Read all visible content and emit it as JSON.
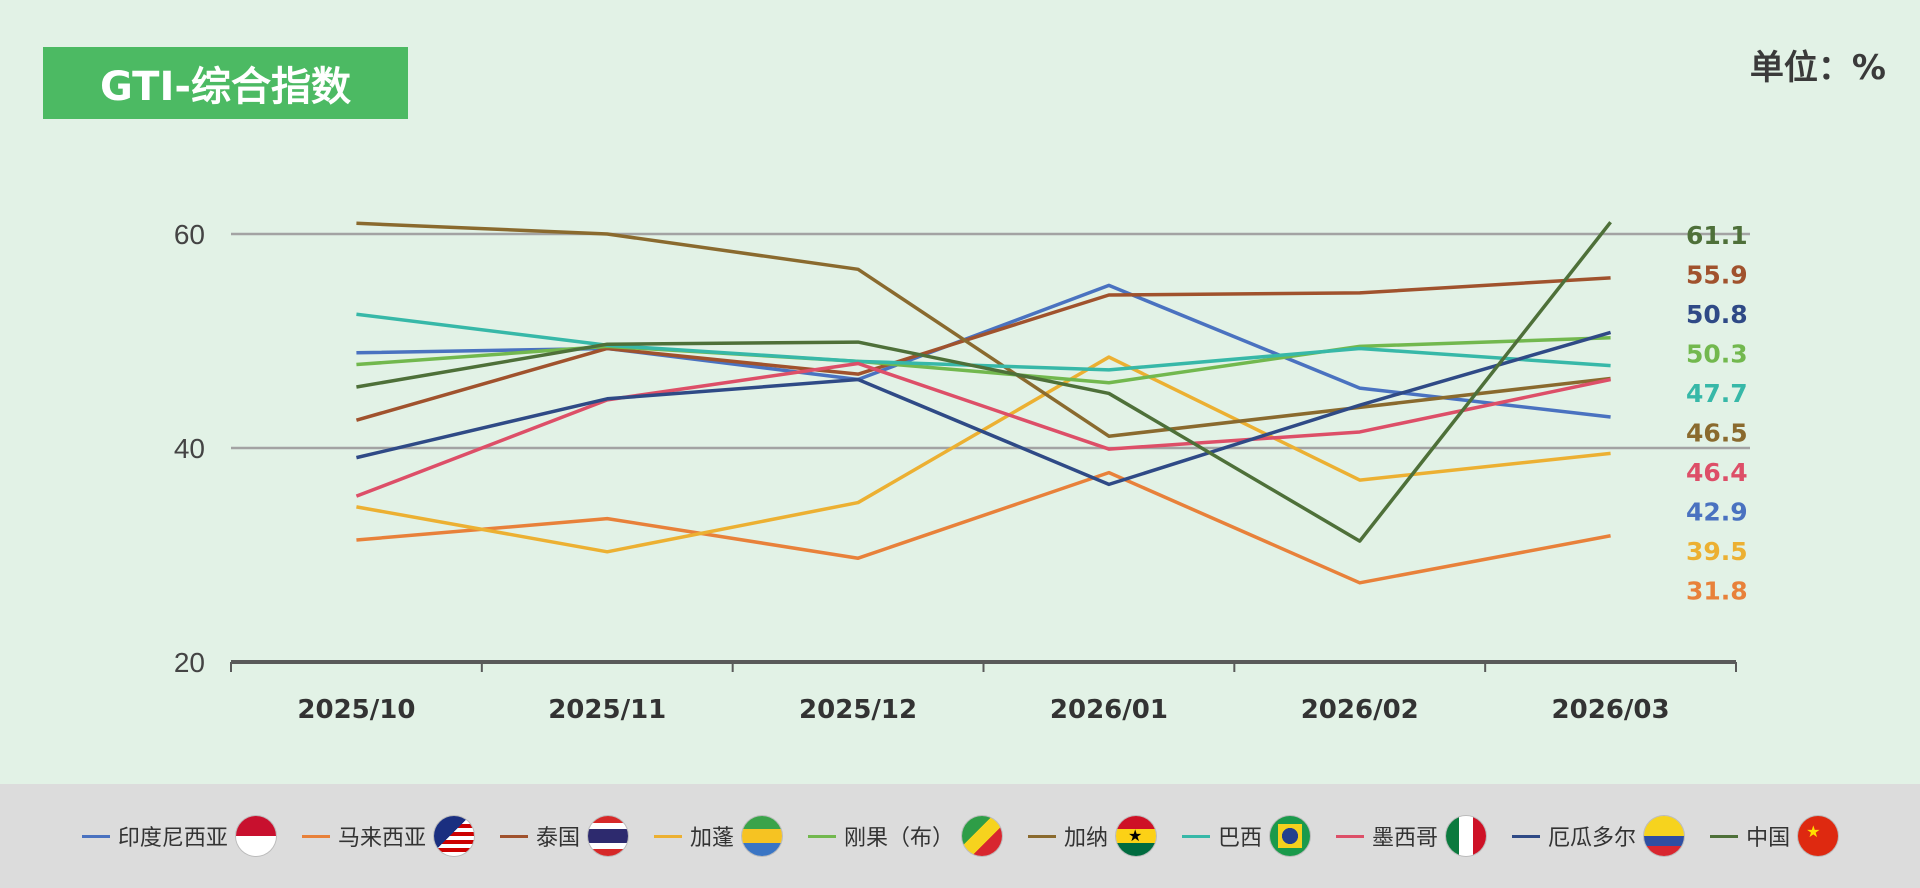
{
  "header": {
    "title": "GTI-综合指数",
    "unit": "单位：%"
  },
  "chart_data": {
    "type": "line",
    "title": "GTI-综合指数",
    "unit": "单位：%",
    "categories": [
      "2025/10",
      "2025/11",
      "2025/12",
      "2026/01",
      "2026/02",
      "2026/03"
    ],
    "ylim": [
      20,
      60
    ],
    "yticks": [
      "20",
      "40",
      "60"
    ],
    "grid": true,
    "legend_position": "bottom",
    "series": [
      {
        "name": "印度尼西亚",
        "color": "#4a72c0",
        "flag": "indonesia-flag",
        "values": [
          48.9,
          49.3,
          46.4,
          55.2,
          45.6,
          42.9
        ],
        "end_label": "42.9"
      },
      {
        "name": "马来西亚",
        "color": "#e8813a",
        "flag": "malaysia-flag",
        "values": [
          31.4,
          33.4,
          29.7,
          37.7,
          27.4,
          31.8
        ],
        "end_label": "31.8"
      },
      {
        "name": "泰国",
        "color": "#a0522d",
        "flag": "thailand-flag",
        "values": [
          42.6,
          49.3,
          46.9,
          54.3,
          54.5,
          55.9
        ],
        "end_label": "55.9"
      },
      {
        "name": "加蓬",
        "color": "#ecb032",
        "flag": "gabon-flag",
        "values": [
          34.5,
          30.3,
          34.9,
          48.5,
          37.0,
          39.5
        ],
        "end_label": "39.5"
      },
      {
        "name": "刚果（布）",
        "color": "#72b84e",
        "flag": "congo-flag",
        "values": [
          47.8,
          49.5,
          48.1,
          46.1,
          49.5,
          50.3
        ],
        "end_label": "50.3"
      },
      {
        "name": "加纳",
        "color": "#8a6a2e",
        "flag": "ghana-flag",
        "values": [
          61.0,
          60.0,
          56.7,
          41.1,
          43.8,
          46.5
        ],
        "end_label": "46.5"
      },
      {
        "name": "巴西",
        "color": "#37b8a8",
        "flag": "brazil-flag",
        "values": [
          52.5,
          49.6,
          48.1,
          47.3,
          49.3,
          47.7
        ],
        "end_label": "47.7"
      },
      {
        "name": "墨西哥",
        "color": "#dd4f68",
        "flag": "mexico-flag",
        "values": [
          35.5,
          44.5,
          47.9,
          39.9,
          41.5,
          46.4
        ],
        "end_label": "46.4"
      },
      {
        "name": "厄瓜多尔",
        "color": "#2f4a86",
        "flag": "ecuador-flag",
        "values": [
          39.1,
          44.6,
          46.4,
          36.6,
          44.0,
          50.8
        ],
        "end_label": "50.8"
      },
      {
        "name": "中国",
        "color": "#4e7039",
        "flag": "china-flag",
        "values": [
          45.7,
          49.7,
          49.9,
          45.1,
          31.3,
          61.1
        ],
        "end_label": "61.1"
      }
    ],
    "end_label_order": [
      9,
      2,
      8,
      4,
      6,
      5,
      7,
      0,
      3,
      1
    ]
  }
}
